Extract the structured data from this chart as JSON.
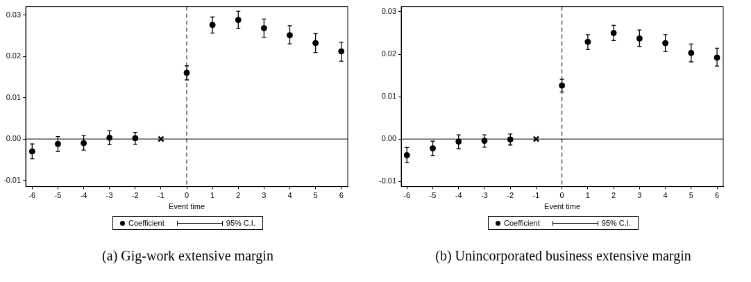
{
  "chart_data": [
    {
      "type": "scatter",
      "title": "(a) Gig-work extensive margin",
      "xlabel": "Event time",
      "xlim": [
        -6.25,
        6.25
      ],
      "xticks": [
        -6,
        -5,
        -4,
        -3,
        -2,
        -1,
        0,
        1,
        2,
        3,
        4,
        5,
        6
      ],
      "ylim": [
        -0.0115,
        0.032
      ],
      "yticks": [
        {
          "value": -0.01,
          "label": "-0.01"
        },
        {
          "value": 0,
          "label": "0.00"
        },
        {
          "value": 0.01,
          "label": "0.01"
        },
        {
          "value": 0.02,
          "label": "0.02"
        },
        {
          "value": 0.03,
          "label": "0.03"
        }
      ],
      "grid": false,
      "legend": "bottom",
      "marker": "circle",
      "annotations": [
        "95% C.I."
      ],
      "ref_lines": [
        {
          "axis": "y",
          "value": 0,
          "line_style": "solid",
          "color": "#000000"
        },
        {
          "axis": "x",
          "value": 0,
          "line_style": "dashed",
          "color": "#000000"
        }
      ],
      "series": [
        {
          "name": "Coefficient",
          "color": "#000000",
          "x": [
            -6,
            -5,
            -4,
            -3,
            -2,
            0,
            1,
            2,
            3,
            4,
            5,
            6
          ],
          "values": [
            -0.003,
            -0.0012,
            -0.001,
            0.0003,
            0.0002,
            0.016,
            0.0276,
            0.0288,
            0.0268,
            0.0251,
            0.0232,
            0.0212
          ],
          "errors": [
            [
              -0.0048,
              -0.0012
            ],
            [
              -0.003,
              0.0006
            ],
            [
              -0.0027,
              0.0008
            ],
            [
              -0.0014,
              0.002
            ],
            [
              -0.0013,
              0.0016
            ],
            [
              0.0143,
              0.0177
            ],
            [
              0.0256,
              0.0295
            ],
            [
              0.0267,
              0.0309
            ],
            [
              0.0246,
              0.029
            ],
            [
              0.023,
              0.0274
            ],
            [
              0.0209,
              0.0255
            ],
            [
              0.0188,
              0.0234
            ]
          ]
        },
        {
          "color": "#000000",
          "marker": "cross",
          "x": [
            -1
          ],
          "values": [
            0
          ]
        }
      ]
    },
    {
      "type": "scatter",
      "title": "(b) Unincorporated business extensive margin",
      "xlabel": "Event time",
      "xlim": [
        -6.22,
        6.24
      ],
      "xticks": [
        -6,
        -5,
        -4,
        -3,
        -2,
        -1,
        0,
        1,
        2,
        3,
        4,
        5,
        6
      ],
      "ylim": [
        -0.0112,
        0.0312
      ],
      "yticks": [
        {
          "value": -0.01,
          "label": "-0.01"
        },
        {
          "value": 0,
          "label": "0.00"
        },
        {
          "value": 0.01,
          "label": "0.01"
        },
        {
          "value": 0.02,
          "label": "0.02"
        },
        {
          "value": 0.03,
          "label": "0.03"
        }
      ],
      "grid": false,
      "legend": "bottom",
      "marker": "circle",
      "annotations": [
        "95% C.I."
      ],
      "ref_lines": [
        {
          "axis": "y",
          "value": 0,
          "line_style": "solid",
          "color": "#000000"
        },
        {
          "axis": "x",
          "value": 0,
          "line_style": "dashed",
          "color": "#000000"
        }
      ],
      "series": [
        {
          "name": "Coefficient",
          "color": "#000000",
          "x": [
            -6,
            -5,
            -4,
            -3,
            -2,
            0,
            1,
            2,
            3,
            4,
            5,
            6
          ],
          "values": [
            -0.0038,
            -0.0022,
            -0.0006,
            -0.0004,
            -0.0001,
            0.0126,
            0.0229,
            0.025,
            0.0237,
            0.0226,
            0.0203,
            0.0192
          ],
          "errors": [
            [
              -0.0056,
              -0.002
            ],
            [
              -0.0039,
              -0.0005
            ],
            [
              -0.0023,
              0.001
            ],
            [
              -0.0019,
              0.001
            ],
            [
              -0.0014,
              0.0012
            ],
            [
              0.0111,
              0.0141
            ],
            [
              0.0211,
              0.0246
            ],
            [
              0.0232,
              0.0268
            ],
            [
              0.0218,
              0.0257
            ],
            [
              0.0206,
              0.0246
            ],
            [
              0.0182,
              0.0224
            ],
            [
              0.0172,
              0.0214
            ]
          ]
        },
        {
          "color": "#000000",
          "marker": "cross",
          "x": [
            -1
          ],
          "values": [
            0
          ]
        }
      ]
    }
  ]
}
